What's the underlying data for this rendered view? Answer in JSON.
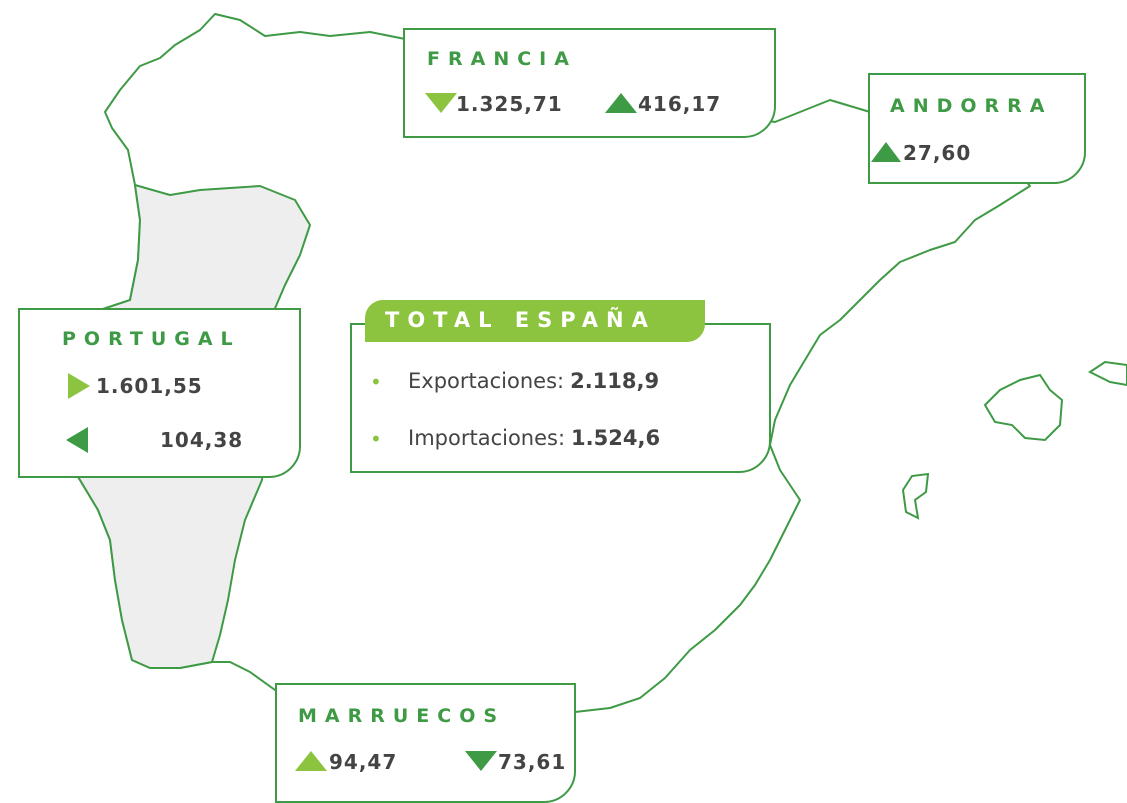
{
  "francia": {
    "name": "FRANCIA",
    "values": [
      "1.325,71",
      "416,17"
    ]
  },
  "andorra": {
    "name": "ANDORRA",
    "values": [
      "27,60"
    ]
  },
  "portugal": {
    "name": "PORTUGAL",
    "values": [
      "1.601,55",
      "104,38"
    ]
  },
  "marruecos": {
    "name": "MARRUECOS",
    "values": [
      "94,47",
      "73,61"
    ]
  },
  "total": {
    "title": "TOTAL ESPAÑA",
    "items": [
      {
        "label": "Exportaciones:",
        "value": "2.118,9"
      },
      {
        "label": "Importaciones:",
        "value": "1.524,6"
      }
    ]
  }
}
